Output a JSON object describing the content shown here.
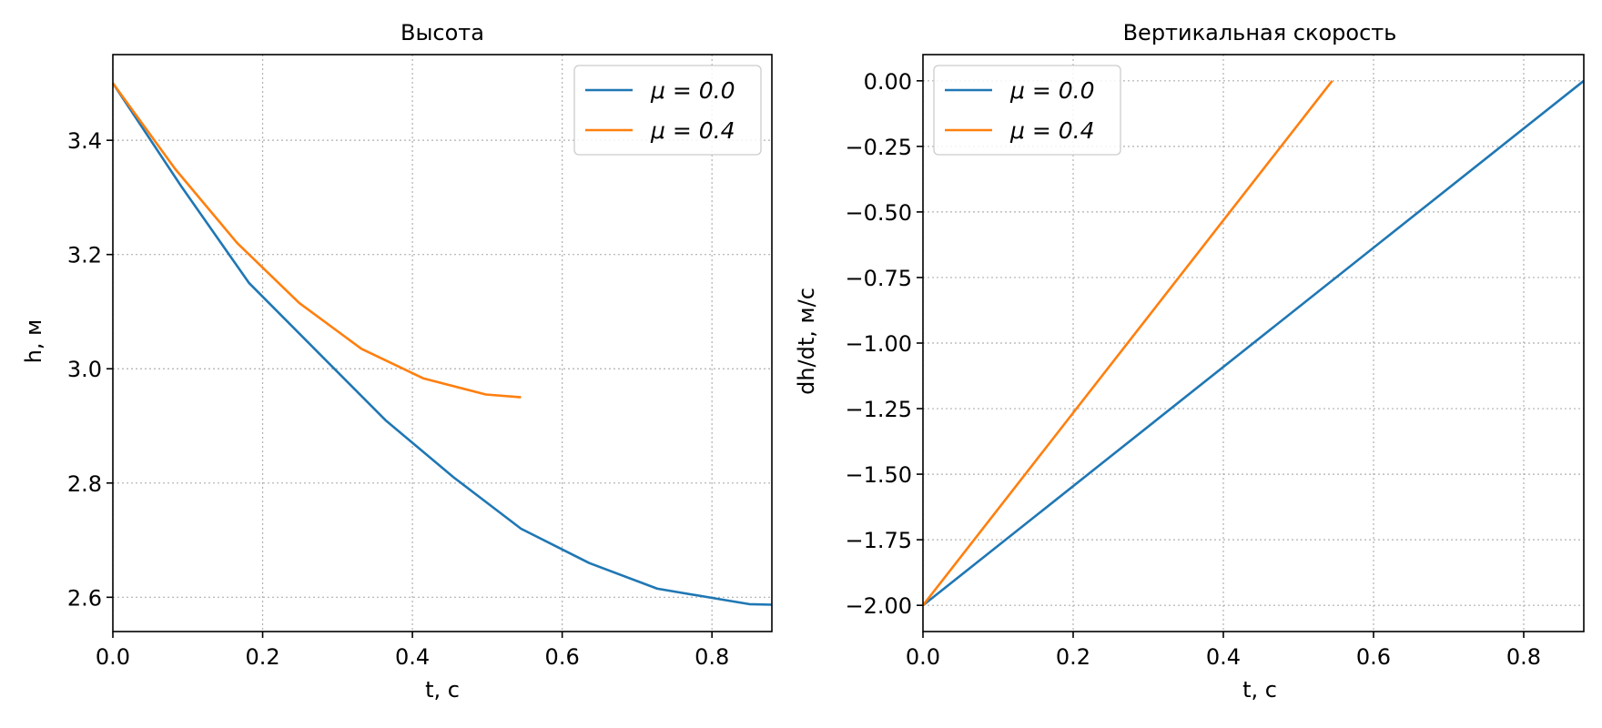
{
  "chart_data": [
    {
      "type": "line",
      "title": "Высота",
      "xlabel": "t, с",
      "ylabel": "h, м",
      "xlim": [
        0.0,
        0.88
      ],
      "ylim": [
        2.54,
        3.55
      ],
      "xticks": [
        "0.0",
        "0.2",
        "0.4",
        "0.6",
        "0.8"
      ],
      "yticks": [
        "2.6",
        "2.8",
        "3.0",
        "3.2",
        "3.4"
      ],
      "grid": true,
      "legend_position": "top-right",
      "series": [
        {
          "name": "μ = 0.0",
          "color": "#1f77b4",
          "x": [
            0.0,
            0.091,
            0.182,
            0.273,
            0.364,
            0.455,
            0.545,
            0.636,
            0.727,
            0.818,
            0.85,
            0.88
          ],
          "y": [
            3.5,
            3.32,
            3.15,
            3.03,
            2.91,
            2.81,
            2.72,
            2.66,
            2.615,
            2.595,
            2.588,
            2.587
          ]
        },
        {
          "name": "μ = 0.4",
          "color": "#ff7f0e",
          "x": [
            0.0,
            0.083,
            0.166,
            0.249,
            0.332,
            0.415,
            0.498,
            0.545
          ],
          "y": [
            3.5,
            3.35,
            3.22,
            3.115,
            3.035,
            2.983,
            2.955,
            2.95
          ]
        }
      ]
    },
    {
      "type": "line",
      "title": "Вертикальная скорость",
      "xlabel": "t, с",
      "ylabel": "dh/dt, м/с",
      "xlim": [
        0.0,
        0.88
      ],
      "ylim": [
        -2.1,
        0.1
      ],
      "xticks": [
        "0.0",
        "0.2",
        "0.4",
        "0.6",
        "0.8"
      ],
      "yticks": [
        "0.00",
        "−0.25",
        "−0.50",
        "−0.75",
        "−1.00",
        "−1.25",
        "−1.50",
        "−1.75",
        "−2.00"
      ],
      "grid": true,
      "legend_position": "top-left",
      "series": [
        {
          "name": "μ = 0.0",
          "color": "#1f77b4",
          "x": [
            0.0,
            0.88
          ],
          "y": [
            -2.0,
            0.0
          ]
        },
        {
          "name": "μ = 0.4",
          "color": "#ff7f0e",
          "x": [
            0.0,
            0.545
          ],
          "y": [
            -2.0,
            0.0
          ]
        }
      ]
    }
  ]
}
